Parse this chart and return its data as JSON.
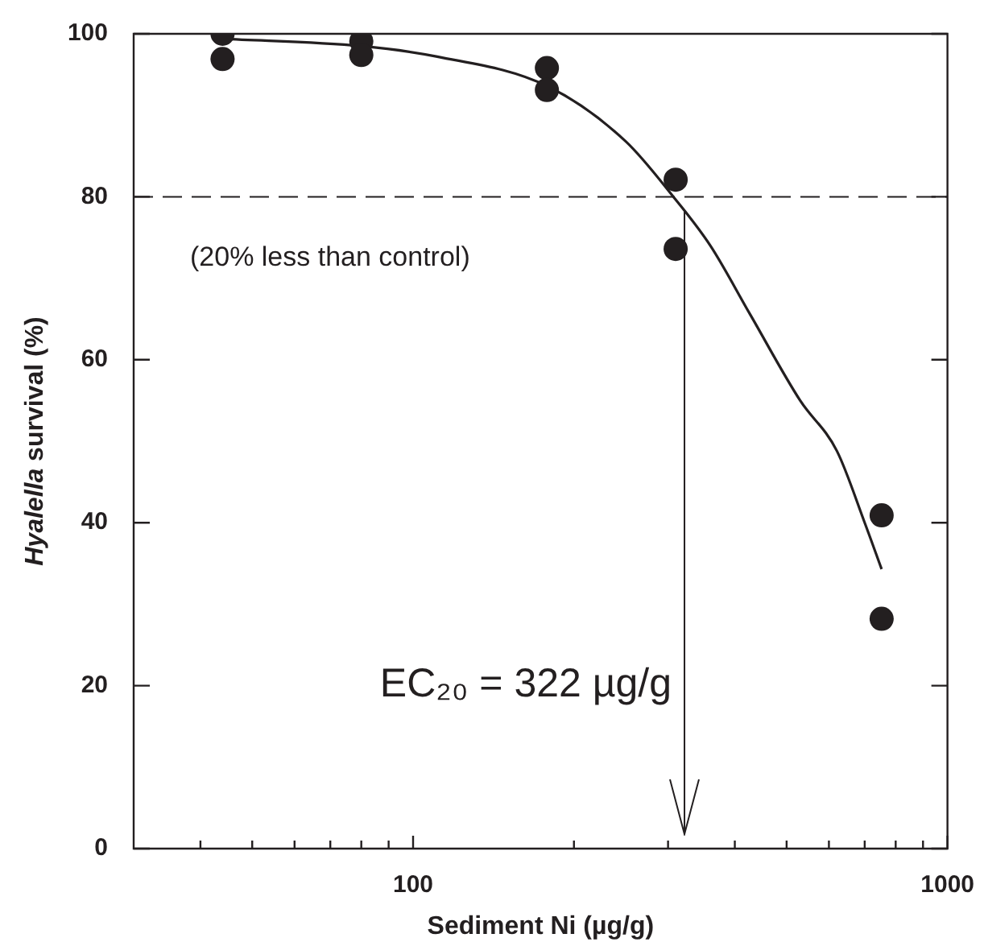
{
  "chart_data": {
    "type": "scatter",
    "xlabel": "Sediment Ni (µg/g)",
    "ylabel": "Hyalella survival (%)",
    "log": "x",
    "xlim": [
      30,
      1000
    ],
    "xticks": [
      {
        "value": 40,
        "label": null
      },
      {
        "value": 50,
        "label": null
      },
      {
        "value": 60,
        "label": null
      },
      {
        "value": 70,
        "label": null
      },
      {
        "value": 80,
        "label": null
      },
      {
        "value": 90,
        "label": null
      },
      100,
      {
        "value": 200,
        "label": null
      },
      {
        "value": 300,
        "label": null
      },
      {
        "value": 400,
        "label": null
      },
      {
        "value": 500,
        "label": null
      },
      {
        "value": 600,
        "label": null
      },
      {
        "value": 700,
        "label": null
      },
      {
        "value": 800,
        "label": null
      },
      {
        "value": 900,
        "label": null
      },
      1000
    ],
    "ylim": [
      0,
      100
    ],
    "yticks": [
      0,
      20,
      40,
      60,
      80,
      100
    ],
    "grid": false,
    "legend": false,
    "marker": "circle",
    "series": [
      {
        "color": "#231f20",
        "x": [
          44,
          44,
          80,
          80,
          178,
          178,
          310,
          310,
          753,
          753
        ],
        "values": [
          100,
          96.9,
          99.1,
          97.4,
          95.8,
          93.1,
          82.1,
          73.6,
          40.9,
          28.2
        ]
      },
      {
        "type": "line",
        "color": "#231f20",
        "marker": "none",
        "line_style": "solid",
        "x": [
          44,
          80,
          111,
          178,
          250,
          307,
          360,
          427,
          530,
          621,
          700,
          753
        ],
        "values": [
          99.4,
          98.5,
          97.2,
          93.6,
          86.8,
          80,
          74,
          65.6,
          55,
          48.8,
          40,
          34.3
        ]
      }
    ],
    "ref_lines": [
      {
        "axis": "y",
        "value": 80,
        "label": "(20% less than control)",
        "color": "#231f20",
        "line_style": "dashed"
      },
      {
        "axis": "x",
        "value": 322,
        "label": "EC₂₀ = 322 µg/g",
        "color": "#231f20",
        "line_style": "solid"
      }
    ]
  }
}
